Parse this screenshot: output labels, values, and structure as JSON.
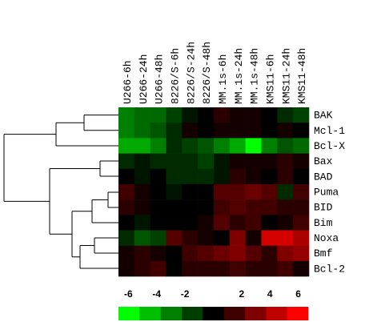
{
  "chart_data": {
    "type": "heatmap",
    "columns": [
      "U266-6h",
      "U266-24h",
      "U266-48h",
      "8226/S-6h",
      "8226/S-24h",
      "8226/S-48h",
      "MM.1s-6h",
      "MM.1s-24h",
      "MM.1s-48h",
      "KMS11-6h",
      "KMS11-24h",
      "KMS11-48h"
    ],
    "rows": [
      "BAK",
      "Mcl-1",
      "Bcl-X",
      "Bax",
      "BAD",
      "Puma",
      "BID",
      "Bim",
      "Noxa",
      "Bmf",
      "Bcl-2"
    ],
    "values": [
      [
        -3,
        -2.5,
        -2.5,
        -1.5,
        -0.5,
        0,
        1,
        0.5,
        0.5,
        0,
        -1,
        -1.5
      ],
      [
        -3,
        -2.5,
        -2,
        -1,
        0.5,
        0,
        0.5,
        0.5,
        0.5,
        0,
        0.5,
        0
      ],
      [
        -4,
        -4,
        -3,
        -1,
        -1.5,
        -2,
        -3,
        -4,
        -6,
        -3,
        -2,
        -2.5
      ],
      [
        -1,
        -0.5,
        -1,
        -1,
        -1,
        -1.5,
        -0.5,
        0.5,
        0.5,
        0.5,
        1,
        0.5
      ],
      [
        0,
        -0.5,
        0,
        -1,
        -1,
        -1,
        -0.5,
        1,
        0.5,
        0,
        1,
        0
      ],
      [
        1.5,
        0.5,
        0,
        -0.5,
        0,
        0,
        2,
        2,
        2.5,
        2,
        -1,
        1.5
      ],
      [
        1,
        0.5,
        0,
        0,
        0,
        0,
        1.5,
        2,
        1.5,
        1.5,
        1,
        1
      ],
      [
        0,
        -0.5,
        0,
        0,
        0,
        0.5,
        2,
        1,
        1.5,
        0,
        0.5,
        1.5
      ],
      [
        -1,
        -2,
        -1.5,
        2,
        1,
        0.5,
        0,
        3,
        0.5,
        5,
        5,
        4
      ],
      [
        0.5,
        1,
        0.5,
        0,
        1.5,
        2,
        2.5,
        3,
        2,
        1,
        3,
        3.5
      ],
      [
        0.5,
        1,
        1.5,
        0,
        1,
        1,
        1,
        1.5,
        1,
        1,
        1.5,
        0.5
      ]
    ],
    "colors": {
      "low": "#00ff00",
      "mid": "#000000",
      "high": "#ff0000"
    },
    "zlim": [
      -6.7,
      6.7
    ],
    "zticks": [
      -6,
      -4,
      -2,
      2,
      4,
      6
    ]
  }
}
